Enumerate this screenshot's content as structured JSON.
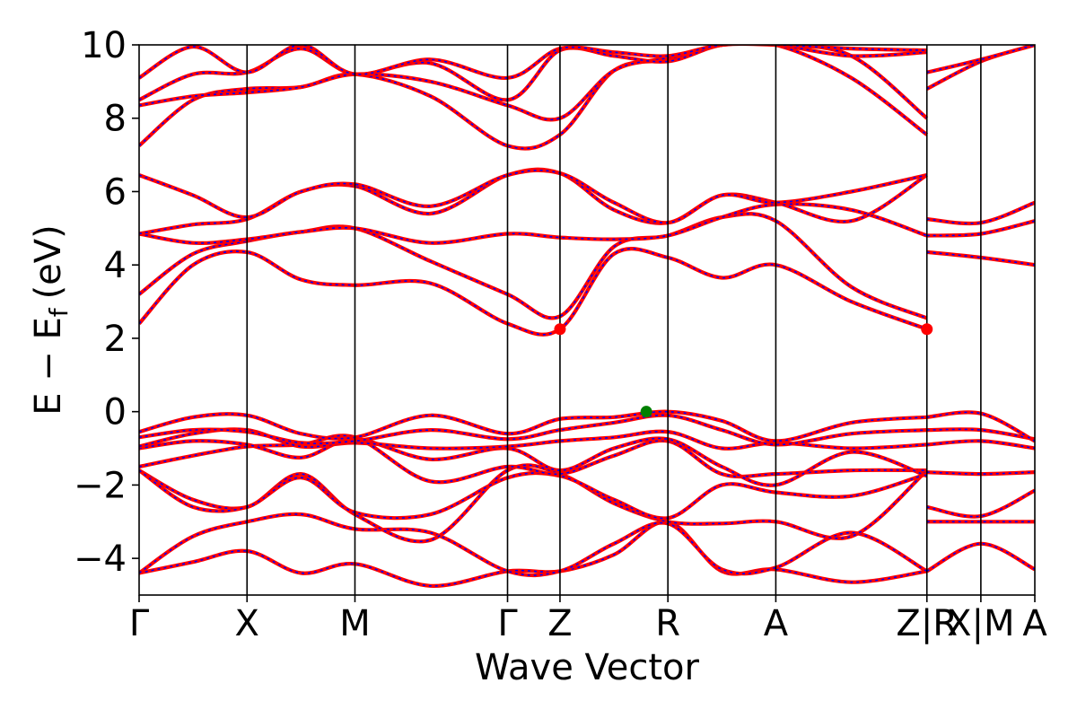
{
  "chart_data": {
    "type": "line",
    "title": "",
    "xlabel": "Wave Vector",
    "ylabel": "E − E",
    "ylabel_sub": "f",
    "ylabel_unit": "(eV)",
    "ylim": [
      -5,
      10
    ],
    "yticks": [
      -4,
      -2,
      0,
      2,
      4,
      6,
      8,
      10
    ],
    "ytick_labels": [
      "−4",
      "−2",
      "0",
      "2",
      "4",
      "6",
      "8",
      "10"
    ],
    "xlim": [
      0,
      8.3
    ],
    "kpoints": [
      {
        "label": "Γ",
        "x": 0.0
      },
      {
        "label": "X",
        "x": 1.0
      },
      {
        "label": "M",
        "x": 2.0
      },
      {
        "label": "Γ",
        "x": 3.414
      },
      {
        "label": "Z",
        "x": 3.9
      },
      {
        "label": "R",
        "x": 4.9
      },
      {
        "label": "A",
        "x": 5.9
      },
      {
        "label": "Z|R",
        "x": 7.3
      },
      {
        "label": "X|M",
        "x": 7.8
      },
      {
        "label": "A",
        "x": 8.3
      }
    ],
    "grid": false,
    "line_colors": {
      "primary": "#ff0000",
      "overlay": "#0000ff"
    },
    "markers": [
      {
        "name": "CBM",
        "x": 3.9,
        "y": 2.25,
        "color": "#ff0000"
      },
      {
        "name": "CBM",
        "x": 7.3,
        "y": 2.25,
        "color": "#ff0000"
      },
      {
        "name": "VBM",
        "x": 4.7,
        "y": 0.0,
        "color": "#008000"
      }
    ],
    "series": [
      {
        "x": [
          0,
          0.5,
          1,
          1.5,
          2,
          2.7,
          3.414,
          3.9,
          4.4,
          4.9,
          5.4,
          5.9,
          6.6,
          7.3
        ],
        "y": [
          -4.4,
          -4.1,
          -3.8,
          -4.4,
          -4.15,
          -4.75,
          -4.35,
          -4.35,
          -3.9,
          -3.0,
          -4.35,
          -4.3,
          -4.65,
          -4.35
        ]
      },
      {
        "x": [
          0,
          0.5,
          1,
          1.5,
          2,
          2.7,
          3.414,
          3.9,
          4.4,
          4.9,
          5.4,
          5.9,
          6.6,
          7.3
        ],
        "y": [
          -4.4,
          -3.4,
          -3.0,
          -2.8,
          -3.2,
          -3.3,
          -4.35,
          -4.35,
          -3.6,
          -3.05,
          -4.3,
          -4.25,
          -3.3,
          -4.35
        ]
      },
      {
        "x": [
          0,
          0.5,
          1,
          1.5,
          2,
          2.7,
          3.414,
          3.9,
          4.4,
          4.9,
          5.4,
          5.9,
          6.6,
          7.3
        ],
        "y": [
          -1.6,
          -2.4,
          -2.6,
          -1.7,
          -2.8,
          -3.5,
          -1.6,
          -1.7,
          -2.5,
          -3.0,
          -3.05,
          -3.0,
          -3.4,
          -1.6
        ]
      },
      {
        "x": [
          0,
          0.5,
          1,
          1.5,
          2,
          2.7,
          3.414,
          3.9,
          4.4,
          4.9,
          5.4,
          5.9,
          6.6,
          7.3
        ],
        "y": [
          -1.6,
          -2.6,
          -2.6,
          -1.8,
          -2.75,
          -2.8,
          -1.8,
          -1.75,
          -2.4,
          -2.9,
          -2.0,
          -2.2,
          -2.3,
          -1.7
        ]
      },
      {
        "x": [
          0,
          0.5,
          1,
          1.5,
          2,
          2.7,
          3.414,
          3.9,
          4.4,
          4.9,
          5.4,
          5.9,
          6.6,
          7.3
        ],
        "y": [
          -1.5,
          -1.2,
          -0.95,
          -0.9,
          -0.7,
          -1.9,
          -1.5,
          -1.7,
          -1.2,
          -0.8,
          -1.7,
          -1.7,
          -1.6,
          -1.6
        ]
      },
      {
        "x": [
          0,
          0.5,
          1,
          1.5,
          2,
          2.7,
          3.414,
          3.9,
          4.4,
          4.9,
          5.4,
          5.9,
          6.6,
          7.3
        ],
        "y": [
          -1.0,
          -0.8,
          -0.9,
          -1.25,
          -0.75,
          -1.3,
          -1.0,
          -1.6,
          -1.0,
          -0.75,
          -1.5,
          -2.0,
          -1.1,
          -1.75
        ]
      },
      {
        "x": [
          0,
          0.5,
          1,
          1.5,
          2,
          2.7,
          3.414,
          3.9,
          4.4,
          4.9,
          5.4,
          5.9,
          6.6,
          7.3
        ],
        "y": [
          -0.95,
          -0.6,
          -0.5,
          -0.95,
          -0.85,
          -1.0,
          -0.95,
          -0.8,
          -0.7,
          -0.55,
          -1.0,
          -0.85,
          -1.0,
          -0.9
        ]
      },
      {
        "x": [
          0,
          0.5,
          1,
          1.5,
          2,
          2.7,
          3.414,
          3.9,
          4.4,
          4.9,
          5.4,
          5.9,
          6.6,
          7.3
        ],
        "y": [
          -0.7,
          -0.5,
          -0.55,
          -0.85,
          -0.8,
          -0.5,
          -0.75,
          -0.5,
          -0.3,
          -0.1,
          -0.5,
          -0.9,
          -0.6,
          -0.5
        ]
      },
      {
        "x": [
          0,
          0.5,
          1,
          1.5,
          2,
          2.7,
          3.414,
          3.9,
          4.4,
          4.9,
          5.4,
          5.9,
          6.6,
          7.3
        ],
        "y": [
          -0.55,
          -0.15,
          -0.1,
          -0.6,
          -0.7,
          -0.1,
          -0.6,
          -0.2,
          -0.15,
          0.0,
          -0.25,
          -0.8,
          -0.3,
          -0.15
        ]
      },
      {
        "x": [
          0,
          0.5,
          1,
          1.5,
          2,
          2.7,
          3.414,
          3.9,
          4.4,
          4.9,
          5.4,
          5.9,
          6.6,
          7.3
        ],
        "y": [
          2.4,
          4.0,
          4.35,
          3.6,
          3.45,
          3.5,
          2.4,
          2.25,
          4.3,
          4.2,
          3.65,
          4.0,
          3.0,
          2.25
        ]
      },
      {
        "x": [
          0,
          0.5,
          1,
          1.5,
          2,
          2.7,
          3.414,
          3.9,
          4.4,
          4.9,
          5.4,
          5.9,
          6.6,
          7.3
        ],
        "y": [
          3.2,
          4.3,
          4.65,
          4.9,
          5.0,
          4.1,
          3.2,
          2.6,
          4.5,
          4.8,
          5.3,
          5.2,
          3.4,
          2.55
        ]
      },
      {
        "x": [
          0,
          0.5,
          1,
          1.5,
          2,
          2.7,
          3.414,
          3.9,
          4.4,
          4.9,
          5.4,
          5.9,
          6.6,
          7.3
        ],
        "y": [
          4.85,
          4.6,
          4.7,
          4.9,
          5.0,
          4.6,
          4.85,
          4.75,
          4.7,
          4.8,
          5.3,
          5.65,
          5.5,
          4.8
        ]
      },
      {
        "x": [
          0,
          0.5,
          1,
          1.5,
          2,
          2.7,
          3.414,
          3.9,
          4.4,
          4.9,
          5.4,
          5.9,
          6.6,
          7.3
        ],
        "y": [
          4.85,
          5.1,
          5.25,
          6.0,
          6.15,
          5.4,
          6.45,
          6.5,
          5.5,
          5.15,
          5.9,
          5.7,
          5.2,
          6.45
        ]
      },
      {
        "x": [
          0,
          0.5,
          1,
          1.5,
          2,
          2.7,
          3.414,
          3.9,
          4.4,
          4.9,
          5.4,
          5.9,
          6.6,
          7.3
        ],
        "y": [
          6.45,
          5.9,
          5.3,
          6.0,
          6.2,
          5.6,
          6.45,
          6.5,
          5.7,
          5.15,
          5.9,
          5.7,
          6.0,
          6.45
        ]
      },
      {
        "x": [
          0,
          0.5,
          1,
          1.5,
          2,
          2.7,
          3.414,
          3.9,
          4.4,
          4.9,
          5.4,
          5.9,
          6.6,
          7.3
        ],
        "y": [
          7.25,
          8.5,
          8.8,
          8.85,
          9.2,
          8.6,
          7.25,
          7.55,
          9.3,
          9.6,
          10.0,
          10.0,
          9.1,
          7.55
        ]
      },
      {
        "x": [
          0,
          0.5,
          1,
          1.5,
          2,
          2.7,
          3.414,
          3.9,
          4.4,
          4.9,
          5.4,
          5.9,
          6.6,
          7.3
        ],
        "y": [
          8.35,
          8.6,
          8.7,
          8.85,
          9.2,
          9.0,
          8.35,
          8.0,
          9.3,
          9.65,
          10.0,
          10.0,
          9.7,
          8.0
        ]
      },
      {
        "x": [
          0,
          0.5,
          1,
          1.5,
          2,
          2.7,
          3.414,
          3.9,
          4.4,
          4.9,
          5.4,
          5.9,
          6.6,
          7.3
        ],
        "y": [
          8.5,
          9.2,
          9.25,
          9.9,
          9.2,
          9.5,
          8.5,
          9.85,
          9.7,
          9.55,
          10.0,
          10.0,
          9.7,
          9.8
        ]
      },
      {
        "x": [
          0,
          0.5,
          1,
          1.5,
          2,
          2.7,
          3.414,
          3.9,
          4.4,
          4.9,
          5.4,
          5.9,
          6.6,
          7.3
        ],
        "y": [
          9.1,
          9.95,
          9.25,
          10.0,
          9.2,
          9.6,
          9.1,
          9.9,
          9.8,
          9.7,
          10.0,
          10.0,
          9.9,
          9.85
        ]
      }
    ],
    "tail_series": [
      {
        "x": [
          7.3,
          7.8,
          8.3
        ],
        "y": [
          -4.35,
          -3.6,
          -4.3
        ]
      },
      {
        "x": [
          7.3,
          7.8,
          8.3
        ],
        "y": [
          -3.0,
          -3.0,
          -3.0
        ]
      },
      {
        "x": [
          7.3,
          7.8,
          8.3
        ],
        "y": [
          -2.6,
          -2.85,
          -2.15
        ]
      },
      {
        "x": [
          7.3,
          7.8,
          8.3
        ],
        "y": [
          -1.65,
          -1.7,
          -1.65
        ]
      },
      {
        "x": [
          7.3,
          7.8,
          8.3
        ],
        "y": [
          -0.9,
          -0.8,
          -1.0
        ]
      },
      {
        "x": [
          7.3,
          7.8,
          8.3
        ],
        "y": [
          -0.5,
          -0.5,
          -0.75
        ]
      },
      {
        "x": [
          7.3,
          7.8,
          8.3
        ],
        "y": [
          -0.15,
          -0.05,
          -0.8
        ]
      },
      {
        "x": [
          7.3,
          7.8,
          8.3
        ],
        "y": [
          4.35,
          4.2,
          4.0
        ]
      },
      {
        "x": [
          7.3,
          7.8,
          8.3
        ],
        "y": [
          4.8,
          4.85,
          5.2
        ]
      },
      {
        "x": [
          7.3,
          7.8,
          8.3
        ],
        "y": [
          5.25,
          5.15,
          5.7
        ]
      },
      {
        "x": [
          7.3,
          7.8,
          8.3
        ],
        "y": [
          8.8,
          9.55,
          10.0
        ]
      },
      {
        "x": [
          7.3,
          7.8,
          8.3
        ],
        "y": [
          9.25,
          9.6,
          10.0
        ]
      }
    ]
  }
}
